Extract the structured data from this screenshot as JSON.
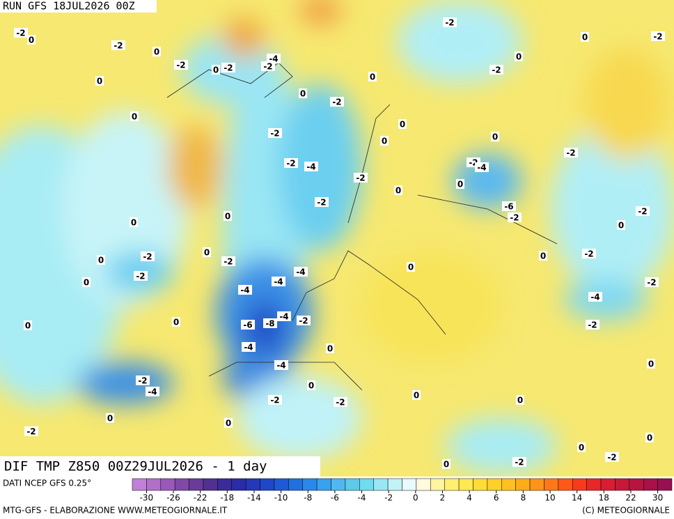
{
  "header": {
    "run": "RUN GFS 18JUL2026 00Z"
  },
  "map": {
    "title": "DIF TMP Z850 00Z29JUL2026 - 1 day",
    "labels": [
      -2,
      0,
      -2,
      0,
      -2,
      0,
      -2,
      -4,
      -2,
      0,
      0,
      -2,
      0,
      0,
      -2,
      -2,
      -4,
      -2,
      0,
      0,
      0,
      -2,
      -4,
      0,
      -6,
      -2,
      0,
      -2,
      0,
      0,
      -2,
      -2,
      -2,
      0,
      -2,
      -4,
      -4,
      -4,
      -8,
      -6,
      -4,
      -2,
      -4,
      -4,
      -2,
      -4,
      -2,
      -2,
      0,
      0,
      -2,
      -2,
      -4,
      -2,
      0,
      0,
      -2,
      0,
      0,
      0,
      0,
      -2,
      0,
      -2,
      0,
      0,
      -2,
      -2,
      0,
      -2,
      0,
      -2,
      0,
      0,
      0,
      0,
      0,
      0
    ]
  },
  "legend": {
    "source": "DATI NCEP GFS 0.25°",
    "colors": [
      "#c080d8",
      "#b070c8",
      "#9a58b8",
      "#8048a8",
      "#683c98",
      "#503090",
      "#3a2c98",
      "#2a2ca8",
      "#2438b8",
      "#1e48c8",
      "#1e5ad8",
      "#2070e0",
      "#2a88e8",
      "#3aa0f0",
      "#50b8f0",
      "#5ccae8",
      "#70dcf0",
      "#98e8f4",
      "#c0f2f8",
      "#e8fafc",
      "#fffae0",
      "#fff5a0",
      "#fff070",
      "#ffe850",
      "#ffdc38",
      "#ffd028",
      "#ffc020",
      "#ffac18",
      "#ff9418",
      "#ff7818",
      "#ff5818",
      "#f83a1c",
      "#e82828",
      "#d81e30",
      "#c81838",
      "#b81440",
      "#a81048",
      "#981050"
    ],
    "ticks": [
      -30,
      -26,
      -22,
      -18,
      -14,
      -10,
      -8,
      -6,
      -4,
      -2,
      0,
      2,
      4,
      6,
      8,
      10,
      14,
      18,
      22,
      30
    ]
  },
  "footer": {
    "left": "MTG-GFS - ELABORAZIONE WWW.METEOGIORNALE.IT",
    "right": "(C) METEOGIORNALE"
  }
}
